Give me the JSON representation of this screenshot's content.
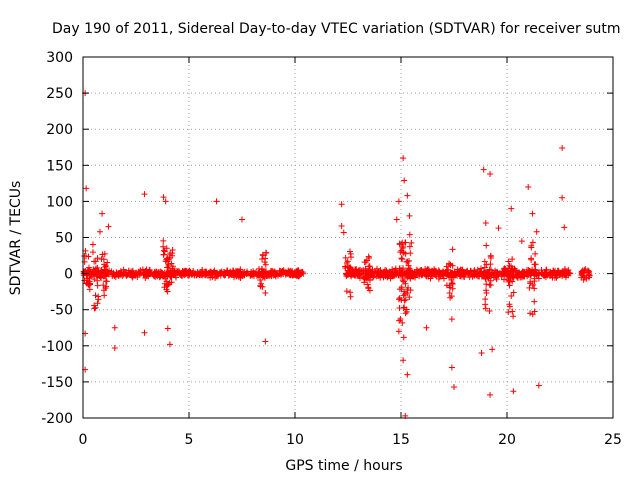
{
  "chart_data": {
    "type": "scatter",
    "title": "Day 190 of 2011, Sidereal Day-to-day VTEC variation (SDTVAR) for receiver sutm",
    "xlabel": "GPS time / hours",
    "ylabel": "SDTVAR / TECUs",
    "xlim": [
      0,
      25
    ],
    "ylim": [
      -200,
      300
    ],
    "xticks": [
      0,
      5,
      10,
      15,
      20,
      25
    ],
    "yticks": [
      300,
      250,
      200,
      150,
      100,
      50,
      0,
      -50,
      -100,
      -150,
      -200
    ],
    "grid": true,
    "marker": "+",
    "color": "#ff0000",
    "segments": [
      {
        "x_start": 0.0,
        "x_end": 10.4,
        "spread": 5
      },
      {
        "x_start": 12.4,
        "x_end": 23.0,
        "spread": 6
      },
      {
        "x_start": 23.5,
        "x_end": 23.9,
        "spread": 10
      }
    ],
    "bursts": [
      {
        "x": 0.2,
        "range": [
          -45,
          50
        ]
      },
      {
        "x": 0.6,
        "range": [
          -55,
          45
        ]
      },
      {
        "x": 1.0,
        "range": [
          -40,
          35
        ]
      },
      {
        "x": 3.9,
        "range": [
          -50,
          60
        ]
      },
      {
        "x": 4.1,
        "range": [
          -35,
          55
        ]
      },
      {
        "x": 8.5,
        "range": [
          -35,
          50
        ]
      },
      {
        "x": 12.5,
        "range": [
          -40,
          45
        ]
      },
      {
        "x": 13.4,
        "range": [
          -25,
          30
        ]
      },
      {
        "x": 15.0,
        "range": [
          -80,
          75
        ]
      },
      {
        "x": 15.2,
        "range": [
          -110,
          95
        ]
      },
      {
        "x": 15.35,
        "range": [
          -70,
          60
        ]
      },
      {
        "x": 17.3,
        "range": [
          -45,
          40
        ]
      },
      {
        "x": 19.1,
        "range": [
          -60,
          50
        ]
      },
      {
        "x": 20.2,
        "range": [
          -75,
          40
        ]
      },
      {
        "x": 21.2,
        "range": [
          -80,
          55
        ]
      }
    ],
    "outliers": [
      {
        "x": 0.1,
        "y": 250
      },
      {
        "x": 0.15,
        "y": 118
      },
      {
        "x": 0.1,
        "y": -83
      },
      {
        "x": 0.1,
        "y": -133
      },
      {
        "x": 0.8,
        "y": 58
      },
      {
        "x": 0.9,
        "y": 83
      },
      {
        "x": 1.2,
        "y": 65
      },
      {
        "x": 1.5,
        "y": -75
      },
      {
        "x": 1.5,
        "y": -103
      },
      {
        "x": 2.9,
        "y": 110
      },
      {
        "x": 2.9,
        "y": -82
      },
      {
        "x": 3.8,
        "y": 106
      },
      {
        "x": 3.9,
        "y": 100
      },
      {
        "x": 4.0,
        "y": -76
      },
      {
        "x": 4.1,
        "y": -98
      },
      {
        "x": 6.3,
        "y": 100
      },
      {
        "x": 7.5,
        "y": 75
      },
      {
        "x": 8.6,
        "y": -94
      },
      {
        "x": 12.2,
        "y": 96
      },
      {
        "x": 12.2,
        "y": 66
      },
      {
        "x": 12.3,
        "y": 57
      },
      {
        "x": 14.8,
        "y": 75
      },
      {
        "x": 14.9,
        "y": 100
      },
      {
        "x": 14.9,
        "y": -80
      },
      {
        "x": 15.1,
        "y": 160
      },
      {
        "x": 15.15,
        "y": 129
      },
      {
        "x": 15.3,
        "y": 108
      },
      {
        "x": 15.4,
        "y": 80
      },
      {
        "x": 15.1,
        "y": -120
      },
      {
        "x": 15.2,
        "y": -197
      },
      {
        "x": 15.3,
        "y": -140
      },
      {
        "x": 16.2,
        "y": -75
      },
      {
        "x": 17.4,
        "y": -130
      },
      {
        "x": 17.4,
        "y": -63
      },
      {
        "x": 17.5,
        "y": -157
      },
      {
        "x": 18.9,
        "y": 144
      },
      {
        "x": 19.0,
        "y": 70
      },
      {
        "x": 19.2,
        "y": 138
      },
      {
        "x": 18.8,
        "y": -110
      },
      {
        "x": 19.2,
        "y": -168
      },
      {
        "x": 19.3,
        "y": -105
      },
      {
        "x": 19.6,
        "y": 63
      },
      {
        "x": 20.2,
        "y": 90
      },
      {
        "x": 20.3,
        "y": -163
      },
      {
        "x": 20.7,
        "y": 45
      },
      {
        "x": 21.0,
        "y": 120
      },
      {
        "x": 21.2,
        "y": 83
      },
      {
        "x": 21.4,
        "y": 58
      },
      {
        "x": 21.5,
        "y": -155
      },
      {
        "x": 22.6,
        "y": 174
      },
      {
        "x": 22.6,
        "y": 105
      },
      {
        "x": 22.7,
        "y": 64
      }
    ]
  }
}
